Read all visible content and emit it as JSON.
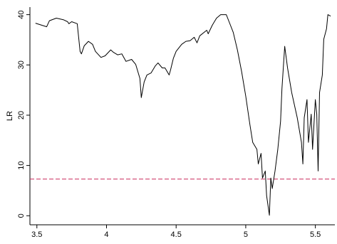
{
  "chart_data": {
    "type": "line",
    "y_label": "LR",
    "x": [
      3.49,
      3.57,
      3.59,
      3.64,
      3.69,
      3.72,
      3.73,
      3.75,
      3.79,
      3.81,
      3.82,
      3.84,
      3.87,
      3.9,
      3.92,
      3.96,
      3.99,
      4.03,
      4.05,
      4.08,
      4.11,
      4.14,
      4.18,
      4.21,
      4.24,
      4.25,
      4.27,
      4.29,
      4.32,
      4.35,
      4.37,
      4.4,
      4.42,
      4.45,
      4.46,
      4.48,
      4.5,
      4.54,
      4.57,
      4.6,
      4.63,
      4.65,
      4.67,
      4.72,
      4.73,
      4.76,
      4.79,
      4.82,
      4.86,
      4.88,
      4.91,
      4.94,
      4.97,
      5.0,
      5.03,
      5.05,
      5.08,
      5.09,
      5.11,
      5.12,
      5.14,
      5.15,
      5.17,
      5.18,
      5.19,
      5.21,
      5.23,
      5.25,
      5.26,
      5.28,
      5.3,
      5.33,
      5.37,
      5.4,
      5.41,
      5.42,
      5.44,
      5.45,
      5.47,
      5.48,
      5.5,
      5.51,
      5.52,
      5.53,
      5.55,
      5.56,
      5.58,
      5.59,
      5.61
    ],
    "values": [
      38.3,
      37.6,
      38.8,
      39.3,
      39.0,
      38.6,
      38.2,
      38.6,
      38.2,
      32.7,
      32.2,
      33.8,
      34.7,
      34.1,
      32.7,
      31.5,
      31.8,
      33.0,
      32.5,
      32.0,
      32.2,
      30.7,
      31.1,
      30.1,
      27.3,
      23.5,
      26.6,
      28.0,
      28.4,
      29.8,
      30.4,
      29.4,
      29.4,
      28.0,
      29.0,
      31.3,
      32.7,
      34.1,
      34.7,
      34.8,
      35.5,
      34.4,
      35.8,
      36.9,
      36.2,
      37.9,
      39.3,
      40.0,
      40.0,
      38.6,
      36.5,
      33.0,
      28.7,
      23.8,
      18.1,
      14.6,
      13.2,
      10.3,
      12.4,
      7.5,
      8.9,
      4.0,
      0.1,
      7.5,
      5.4,
      8.9,
      13.2,
      18.8,
      25.2,
      33.7,
      29.4,
      24.5,
      19.5,
      14.6,
      10.3,
      19.5,
      23.1,
      14.6,
      20.2,
      13.2,
      23.1,
      20.2,
      8.9,
      24.5,
      28.0,
      35.1,
      37.2,
      40.0,
      39.7
    ],
    "color": "#000000",
    "hline": 7.3,
    "hline_color": "#c8285a",
    "xlim": [
      3.45,
      5.64
    ],
    "xticks": [
      3.5,
      4,
      4.5,
      5,
      5.5
    ],
    "ylim": [
      -1.8,
      41.5
    ],
    "yticks": [
      0,
      10,
      20,
      30,
      40
    ]
  }
}
